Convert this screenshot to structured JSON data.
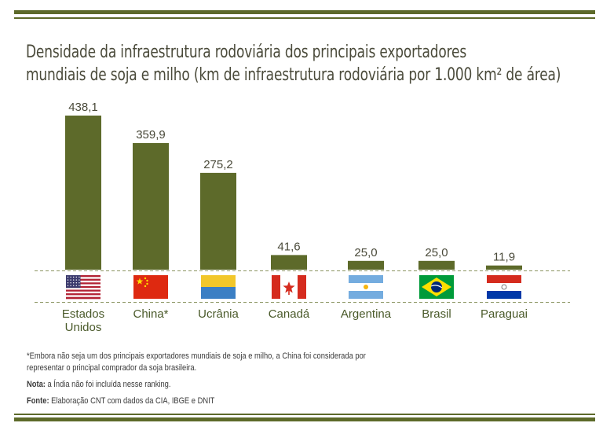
{
  "title_lines": [
    "Densidade da infraestrutura rodoviária dos principais exportadores",
    "mundiais de soja e milho (km de infraestrutura rodoviária por 1.000 km² de área)"
  ],
  "chart_data": {
    "type": "bar",
    "title": "Densidade da infraestrutura rodoviária dos principais exportadores mundiais de soja e milho (km de infraestrutura rodoviária por 1.000 km² de área)",
    "categories": [
      [
        "Estados",
        "Unidos"
      ],
      [
        "China*"
      ],
      [
        "Ucrânia"
      ],
      [
        "Canadá"
      ],
      [
        "Argentina"
      ],
      [
        "Brasil"
      ],
      [
        "Paraguai"
      ]
    ],
    "values": [
      438.1,
      359.9,
      275.2,
      41.6,
      25.0,
      25.0,
      11.9
    ],
    "value_labels": [
      "438,1",
      "359,9",
      "275,2",
      "41,6",
      "25,0",
      "25,0",
      "11,9"
    ],
    "flags": [
      "usa-flag-icon",
      "china-flag-icon",
      "ukraine-flag-icon",
      "canada-flag-icon",
      "argentina-flag-icon",
      "brazil-flag-icon",
      "paraguay-flag-icon"
    ],
    "bar_color": "#5d6a2a",
    "grid": false,
    "legend": "none",
    "ylim": [
      0,
      440
    ]
  },
  "notes": {
    "footnote_1": "*Embora não seja um dos principais exportadores mundiais de soja e milho, a China foi considerada por",
    "footnote_2": "representar o principal comprador da soja brasileira.",
    "nota_label": "Nota:",
    "nota_text": " a Índia não foi incluída nesse ranking.",
    "fonte_label": "Fonte:",
    "fonte_text": " Elaboração CNT com dados da CIA, IBGE e DNIT"
  },
  "colors": {
    "accent": "#5d6a2a",
    "text": "#3a3a2a"
  }
}
